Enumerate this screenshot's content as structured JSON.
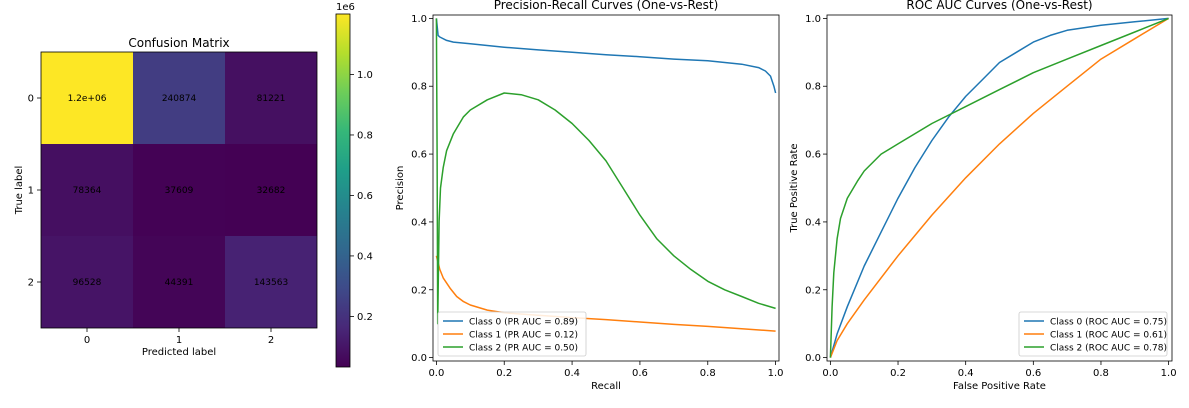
{
  "chart_data": [
    {
      "type": "heatmap",
      "title": "Confusion Matrix",
      "xlabel": "Predicted label",
      "ylabel": "True label",
      "x_categories": [
        "0",
        "1",
        "2"
      ],
      "y_categories": [
        "0",
        "1",
        "2"
      ],
      "values": [
        [
          1200000,
          240874,
          81221
        ],
        [
          78364,
          37609,
          32682
        ],
        [
          96528,
          44391,
          143563
        ]
      ],
      "cell_labels": [
        [
          "1.2e+06",
          "240874",
          "81221"
        ],
        [
          "78364",
          "37609",
          "32682"
        ],
        [
          "96528",
          "44391",
          "143563"
        ]
      ],
      "colorbar": {
        "colormap": "viridis",
        "range": [
          32682,
          1200000
        ],
        "ticks": [
          0.2,
          0.4,
          0.6,
          0.8,
          1.0
        ],
        "tick_labels": [
          "0.2",
          "0.4",
          "0.6",
          "0.8",
          "1.0"
        ],
        "offset_label": "1e6"
      },
      "annotation_colors": {
        "on_light": "#440154",
        "on_dark": "#fde725"
      }
    },
    {
      "type": "line",
      "title": "Precision-Recall Curves (One-vs-Rest)",
      "xlabel": "Recall",
      "ylabel": "Precision",
      "xlim": [
        0,
        1
      ],
      "ylim": [
        0,
        1
      ],
      "xticks": [
        0.0,
        0.2,
        0.4,
        0.6,
        0.8,
        1.0
      ],
      "xtick_labels": [
        "0.0",
        "0.2",
        "0.4",
        "0.6",
        "0.8",
        "1.0"
      ],
      "yticks": [
        0.0,
        0.2,
        0.4,
        0.6,
        0.8,
        1.0
      ],
      "ytick_labels": [
        "0.0",
        "0.2",
        "0.4",
        "0.6",
        "0.8",
        "1.0"
      ],
      "legend_position": "lower-left",
      "grid": false,
      "series": [
        {
          "name": "Class 0 (PR AUC = 0.89)",
          "color": "#1f77b4",
          "x": [
            0.0,
            0.003,
            0.005,
            0.01,
            0.03,
            0.05,
            0.1,
            0.2,
            0.3,
            0.4,
            0.5,
            0.6,
            0.7,
            0.8,
            0.9,
            0.95,
            0.97,
            0.985,
            0.995,
            1.0
          ],
          "y": [
            1.0,
            0.97,
            0.95,
            0.945,
            0.935,
            0.93,
            0.925,
            0.915,
            0.907,
            0.9,
            0.893,
            0.887,
            0.88,
            0.875,
            0.865,
            0.855,
            0.845,
            0.83,
            0.8,
            0.78
          ]
        },
        {
          "name": "Class 1 (PR AUC = 0.12)",
          "color": "#ff7f0e",
          "x": [
            0.0,
            0.005,
            0.01,
            0.02,
            0.04,
            0.06,
            0.08,
            0.1,
            0.15,
            0.2,
            0.3,
            0.4,
            0.5,
            0.6,
            0.7,
            0.8,
            0.9,
            1.0
          ],
          "y": [
            0.3,
            0.28,
            0.26,
            0.235,
            0.205,
            0.18,
            0.165,
            0.155,
            0.14,
            0.132,
            0.125,
            0.118,
            0.112,
            0.105,
            0.098,
            0.092,
            0.085,
            0.078
          ]
        },
        {
          "name": "Class 2 (PR AUC = 0.50)",
          "color": "#2ca02c",
          "x": [
            0.0,
            0.002,
            0.004,
            0.006,
            0.008,
            0.012,
            0.02,
            0.03,
            0.05,
            0.08,
            0.1,
            0.15,
            0.2,
            0.25,
            0.3,
            0.35,
            0.4,
            0.45,
            0.5,
            0.55,
            0.6,
            0.65,
            0.7,
            0.75,
            0.8,
            0.85,
            0.9,
            0.95,
            1.0
          ],
          "y": [
            1.0,
            0.6,
            0.1,
            0.25,
            0.4,
            0.5,
            0.56,
            0.61,
            0.66,
            0.71,
            0.73,
            0.76,
            0.78,
            0.775,
            0.76,
            0.73,
            0.69,
            0.64,
            0.58,
            0.5,
            0.42,
            0.35,
            0.3,
            0.26,
            0.225,
            0.2,
            0.18,
            0.16,
            0.145
          ]
        }
      ]
    },
    {
      "type": "line",
      "title": "ROC AUC Curves (One-vs-Rest)",
      "xlabel": "False Positive Rate",
      "ylabel": "True Positive Rate",
      "xlim": [
        0,
        1
      ],
      "ylim": [
        0,
        1
      ],
      "xticks": [
        0.0,
        0.2,
        0.4,
        0.6,
        0.8,
        1.0
      ],
      "xtick_labels": [
        "0.0",
        "0.2",
        "0.4",
        "0.6",
        "0.8",
        "1.0"
      ],
      "yticks": [
        0.0,
        0.2,
        0.4,
        0.6,
        0.8,
        1.0
      ],
      "ytick_labels": [
        "0.0",
        "0.2",
        "0.4",
        "0.6",
        "0.8",
        "1.0"
      ],
      "legend_position": "lower-right",
      "grid": false,
      "series": [
        {
          "name": "Class 0 (ROC AUC = 0.75)",
          "color": "#1f77b4",
          "x": [
            0.0,
            0.02,
            0.05,
            0.1,
            0.15,
            0.2,
            0.25,
            0.3,
            0.35,
            0.4,
            0.45,
            0.5,
            0.55,
            0.6,
            0.65,
            0.7,
            0.8,
            0.9,
            1.0
          ],
          "y": [
            0.0,
            0.07,
            0.15,
            0.27,
            0.37,
            0.47,
            0.56,
            0.64,
            0.71,
            0.77,
            0.82,
            0.87,
            0.9,
            0.93,
            0.95,
            0.965,
            0.98,
            0.99,
            1.0
          ]
        },
        {
          "name": "Class 1 (ROC AUC = 0.61)",
          "color": "#ff7f0e",
          "x": [
            0.0,
            0.02,
            0.05,
            0.1,
            0.2,
            0.3,
            0.4,
            0.5,
            0.6,
            0.7,
            0.8,
            0.9,
            1.0
          ],
          "y": [
            0.0,
            0.05,
            0.1,
            0.17,
            0.3,
            0.42,
            0.53,
            0.63,
            0.72,
            0.8,
            0.88,
            0.94,
            1.0
          ]
        },
        {
          "name": "Class 2 (ROC AUC = 0.78)",
          "color": "#2ca02c",
          "x": [
            0.0,
            0.005,
            0.01,
            0.02,
            0.03,
            0.05,
            0.08,
            0.1,
            0.15,
            0.2,
            0.3,
            0.4,
            0.5,
            0.6,
            0.7,
            0.8,
            0.9,
            1.0
          ],
          "y": [
            0.0,
            0.15,
            0.25,
            0.35,
            0.41,
            0.47,
            0.52,
            0.55,
            0.6,
            0.63,
            0.69,
            0.74,
            0.79,
            0.84,
            0.88,
            0.92,
            0.96,
            1.0
          ]
        }
      ]
    }
  ]
}
